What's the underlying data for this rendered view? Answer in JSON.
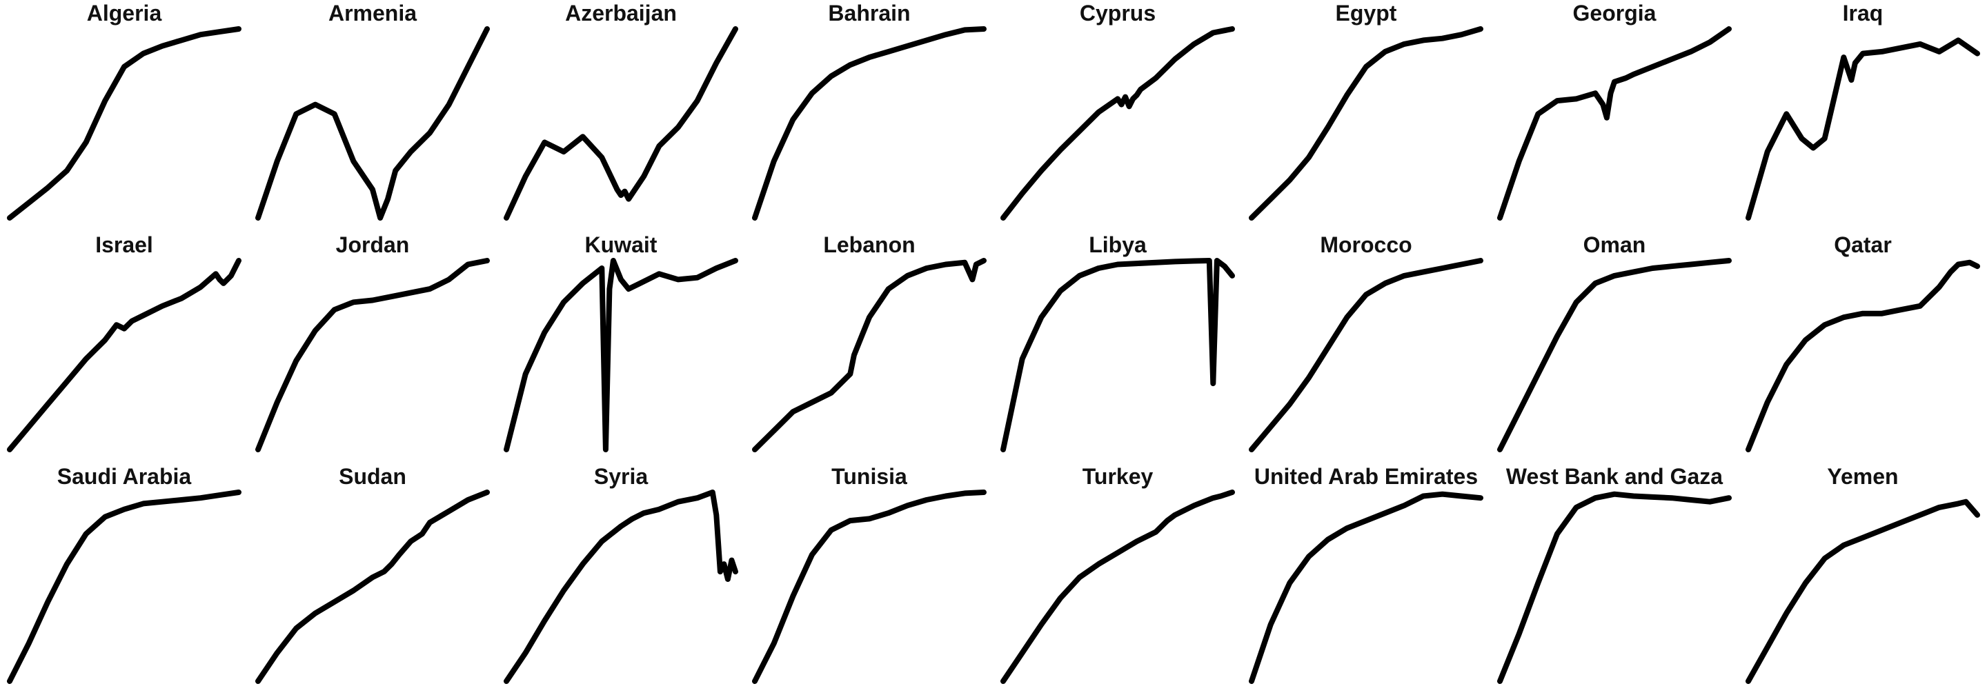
{
  "style": {
    "line_color": "#000000",
    "background": "#ffffff"
  },
  "chart_data": {
    "type": "line",
    "layout": "small-multiples",
    "grid": false,
    "axes_visible": false,
    "panels": [
      {
        "title": "Algeria",
        "x": [
          0,
          5,
          10,
          15,
          20,
          25,
          30,
          35,
          40,
          45,
          50,
          55,
          60
        ],
        "y": [
          0,
          8,
          16,
          25,
          40,
          62,
          80,
          87,
          91,
          94,
          97,
          98.5,
          100
        ]
      },
      {
        "title": "Armenia",
        "x": [
          0,
          5,
          10,
          15,
          20,
          25,
          30,
          32,
          34,
          36,
          40,
          45,
          50,
          55,
          60
        ],
        "y": [
          0,
          30,
          55,
          60,
          55,
          30,
          15,
          0,
          10,
          25,
          35,
          45,
          60,
          80,
          100
        ]
      },
      {
        "title": "Azerbaijan",
        "x": [
          0,
          5,
          10,
          15,
          20,
          25,
          29,
          30,
          31,
          32,
          36,
          40,
          45,
          50,
          55,
          60
        ],
        "y": [
          0,
          22,
          40,
          35,
          43,
          32,
          15,
          12,
          14,
          10,
          22,
          38,
          48,
          62,
          82,
          100
        ]
      },
      {
        "title": "Bahrain",
        "x": [
          0,
          5,
          10,
          15,
          20,
          25,
          30,
          35,
          40,
          45,
          50,
          55,
          60
        ],
        "y": [
          0,
          30,
          52,
          66,
          75,
          81,
          85,
          88,
          91,
          94,
          97,
          99.5,
          100
        ]
      },
      {
        "title": "Cyprus",
        "x": [
          0,
          5,
          10,
          15,
          20,
          25,
          30,
          31,
          32,
          33,
          34,
          35,
          36,
          40,
          45,
          50,
          55,
          60
        ],
        "y": [
          0,
          13,
          25,
          36,
          46,
          56,
          63,
          60,
          64,
          59,
          63,
          65,
          68,
          74,
          84,
          92,
          98,
          100
        ]
      },
      {
        "title": "Egypt",
        "x": [
          0,
          5,
          10,
          15,
          20,
          25,
          30,
          35,
          40,
          45,
          50,
          55,
          60
        ],
        "y": [
          0,
          10,
          20,
          32,
          48,
          65,
          80,
          88,
          92,
          94,
          95,
          97,
          100
        ]
      },
      {
        "title": "Georgia",
        "x": [
          0,
          5,
          10,
          15,
          20,
          25,
          27,
          28,
          29,
          30,
          33,
          35,
          40,
          45,
          50,
          55,
          60
        ],
        "y": [
          0,
          30,
          55,
          62,
          63,
          66,
          60,
          53,
          66,
          72,
          74,
          76,
          80,
          84,
          88,
          93,
          100
        ]
      },
      {
        "title": "Iraq",
        "x": [
          0,
          5,
          10,
          14,
          17,
          20,
          25,
          27,
          28,
          30,
          35,
          40,
          45,
          50,
          55,
          60
        ],
        "y": [
          0,
          35,
          55,
          42,
          37,
          42,
          85,
          73,
          82,
          87,
          88,
          90,
          92,
          88,
          94,
          87
        ]
      },
      {
        "title": "Israel",
        "x": [
          0,
          5,
          10,
          15,
          20,
          25,
          28,
          30,
          32,
          35,
          40,
          45,
          50,
          54,
          55,
          56,
          58,
          60
        ],
        "y": [
          0,
          12,
          24,
          36,
          48,
          58,
          66,
          64,
          68,
          71,
          76,
          80,
          86,
          93,
          90,
          88,
          92,
          100
        ]
      },
      {
        "title": "Jordan",
        "x": [
          0,
          5,
          10,
          15,
          20,
          25,
          30,
          35,
          40,
          45,
          50,
          55,
          60
        ],
        "y": [
          0,
          25,
          47,
          63,
          74,
          78,
          79,
          81,
          83,
          85,
          90,
          98,
          100
        ]
      },
      {
        "title": "Kuwait",
        "x": [
          0,
          5,
          10,
          15,
          20,
          25,
          26,
          27,
          28,
          30,
          32,
          35,
          40,
          45,
          50,
          55,
          60
        ],
        "y": [
          0,
          40,
          62,
          78,
          88,
          96,
          0,
          85,
          100,
          90,
          85,
          88,
          93,
          90,
          91,
          96,
          100
        ]
      },
      {
        "title": "Lebanon",
        "x": [
          0,
          5,
          10,
          15,
          20,
          25,
          26,
          28,
          30,
          35,
          40,
          45,
          50,
          55,
          57,
          58,
          60
        ],
        "y": [
          0,
          10,
          20,
          25,
          30,
          40,
          50,
          60,
          70,
          85,
          92,
          96,
          98,
          99,
          90,
          98,
          100
        ]
      },
      {
        "title": "Libya",
        "x": [
          0,
          5,
          10,
          15,
          20,
          25,
          30,
          35,
          40,
          45,
          50,
          54,
          55,
          56,
          58,
          60
        ],
        "y": [
          0,
          48,
          70,
          84,
          92,
          96,
          98,
          98.5,
          99,
          99.5,
          99.8,
          100,
          35,
          100,
          97,
          92
        ]
      },
      {
        "title": "Morocco",
        "x": [
          0,
          5,
          10,
          15,
          20,
          25,
          30,
          35,
          40,
          45,
          50,
          55,
          60
        ],
        "y": [
          0,
          12,
          24,
          38,
          54,
          70,
          82,
          88,
          92,
          94,
          96,
          98,
          100
        ]
      },
      {
        "title": "Oman",
        "x": [
          0,
          5,
          10,
          15,
          20,
          25,
          30,
          35,
          40,
          45,
          50,
          55,
          60
        ],
        "y": [
          0,
          20,
          40,
          60,
          78,
          88,
          92,
          94,
          96,
          97,
          98,
          99,
          100
        ]
      },
      {
        "title": "Qatar",
        "x": [
          0,
          5,
          10,
          15,
          20,
          25,
          30,
          35,
          40,
          45,
          50,
          53,
          55,
          58,
          60
        ],
        "y": [
          0,
          25,
          45,
          58,
          66,
          70,
          72,
          72,
          74,
          76,
          86,
          94,
          98,
          99,
          97
        ]
      },
      {
        "title": "Saudi Arabia",
        "x": [
          0,
          5,
          10,
          15,
          20,
          25,
          30,
          35,
          40,
          45,
          50,
          55,
          60
        ],
        "y": [
          0,
          20,
          42,
          62,
          78,
          87,
          91,
          94,
          95,
          96,
          97,
          98.5,
          100
        ]
      },
      {
        "title": "Sudan",
        "x": [
          0,
          5,
          10,
          15,
          20,
          25,
          30,
          33,
          35,
          37,
          40,
          43,
          45,
          50,
          55,
          60
        ],
        "y": [
          0,
          15,
          28,
          36,
          42,
          48,
          55,
          58,
          62,
          67,
          74,
          78,
          84,
          90,
          96,
          100
        ]
      },
      {
        "title": "Syria",
        "x": [
          0,
          5,
          10,
          15,
          20,
          25,
          30,
          33,
          36,
          40,
          45,
          50,
          54,
          55,
          56,
          57,
          58,
          59,
          60
        ],
        "y": [
          0,
          15,
          32,
          48,
          62,
          74,
          82,
          86,
          89,
          91,
          95,
          97,
          100,
          88,
          58,
          62,
          54,
          64,
          58
        ]
      },
      {
        "title": "Tunisia",
        "x": [
          0,
          5,
          10,
          15,
          20,
          25,
          30,
          35,
          40,
          45,
          50,
          55,
          60
        ],
        "y": [
          0,
          20,
          45,
          67,
          80,
          85,
          86,
          89,
          93,
          96,
          98,
          99.5,
          100
        ]
      },
      {
        "title": "Turkey",
        "x": [
          0,
          5,
          10,
          15,
          20,
          25,
          30,
          35,
          40,
          43,
          45,
          50,
          55,
          57,
          60
        ],
        "y": [
          0,
          15,
          30,
          44,
          55,
          62,
          68,
          74,
          79,
          85,
          88,
          93,
          97,
          98,
          100
        ]
      },
      {
        "title": "United Arab Emirates",
        "x": [
          0,
          5,
          10,
          15,
          20,
          25,
          30,
          35,
          40,
          45,
          50,
          55,
          60
        ],
        "y": [
          0,
          30,
          52,
          66,
          75,
          81,
          85,
          89,
          93,
          98,
          99,
          98,
          97
        ]
      },
      {
        "title": "West Bank and Gaza",
        "x": [
          0,
          5,
          10,
          15,
          20,
          25,
          30,
          35,
          40,
          45,
          50,
          55,
          60
        ],
        "y": [
          0,
          25,
          52,
          78,
          92,
          97,
          99,
          98,
          97.5,
          97,
          96,
          95,
          97
        ]
      },
      {
        "title": "Yemen",
        "x": [
          0,
          5,
          10,
          15,
          20,
          25,
          30,
          35,
          40,
          45,
          50,
          55,
          57,
          60
        ],
        "y": [
          0,
          18,
          36,
          52,
          65,
          72,
          76,
          80,
          84,
          88,
          92,
          94,
          95,
          88
        ]
      }
    ],
    "xlim": [
      0,
      60
    ],
    "ylim": [
      0,
      100
    ]
  }
}
